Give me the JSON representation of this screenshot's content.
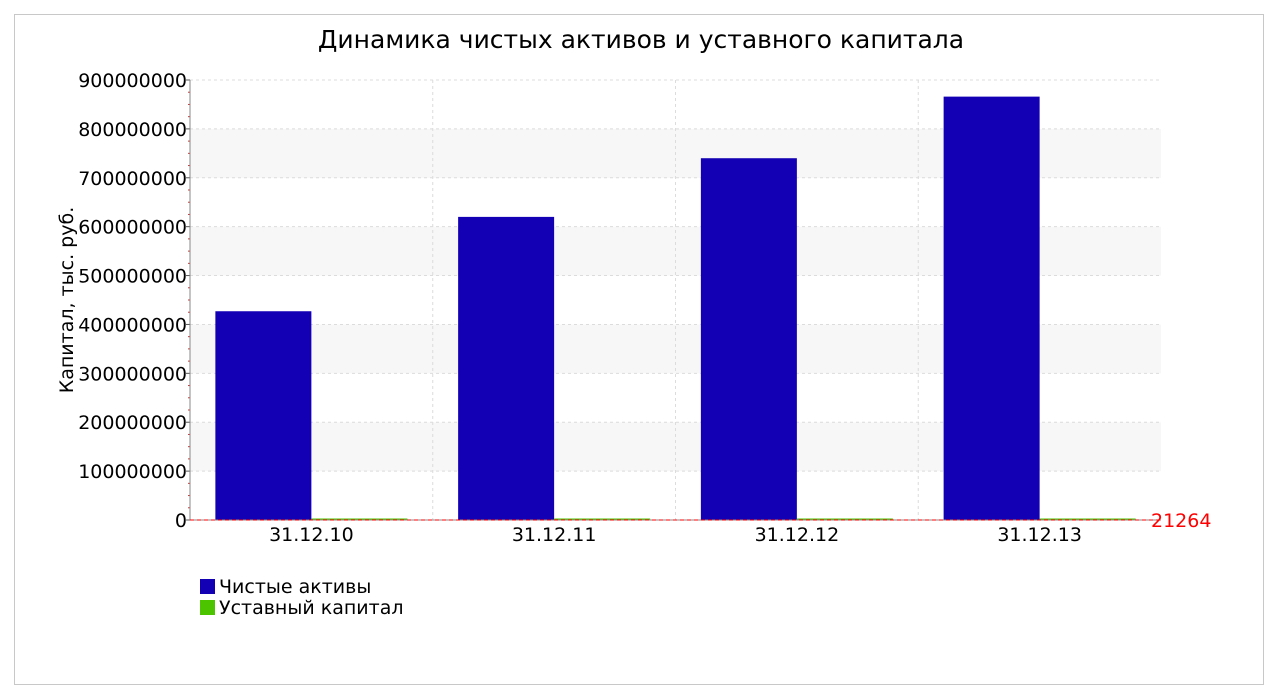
{
  "chart_data": {
    "type": "bar",
    "title": "Динамика чистых активов и уставного капитала",
    "xlabel": "",
    "ylabel": "Капитал, тыс. руб.",
    "categories": [
      "31.12.10",
      "31.12.11",
      "31.12.12",
      "31.12.13"
    ],
    "series": [
      {
        "name": "Чистые активы",
        "color": "#1300b4",
        "values": [
          427000000,
          620000000,
          740000000,
          866000000
        ]
      },
      {
        "name": "Уставный капитал",
        "color": "#4cc400",
        "values": [
          21264,
          21264,
          21264,
          21264
        ]
      }
    ],
    "ylim": [
      0,
      900000000
    ],
    "yticks": [
      0,
      100000000,
      200000000,
      300000000,
      400000000,
      500000000,
      600000000,
      700000000,
      800000000,
      900000000
    ],
    "grid": true,
    "legend_position": "bottom-left",
    "reference_line": {
      "value": 21264,
      "label": "21264",
      "color": "#ff0000"
    }
  }
}
